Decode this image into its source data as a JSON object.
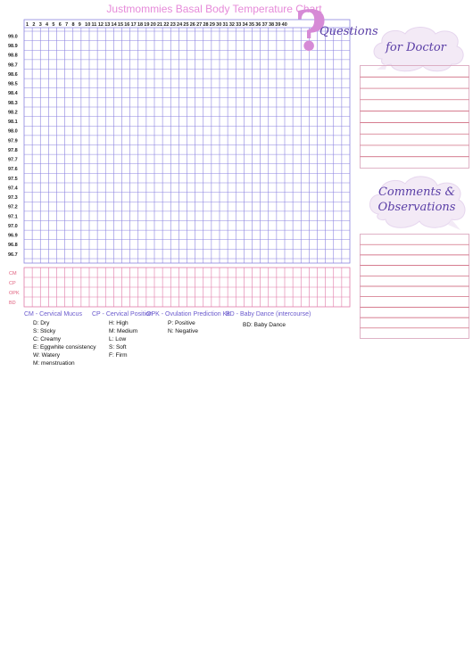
{
  "title": "Justmommies Basal Body Temperature Chart",
  "days": [
    "1",
    "2",
    "3",
    "4",
    "5",
    "6",
    "7",
    "8",
    "9",
    "10",
    "11",
    "12",
    "13",
    "14",
    "15",
    "16",
    "17",
    "18",
    "19",
    "20",
    "21",
    "22",
    "23",
    "24",
    "25",
    "26",
    "27",
    "28",
    "29",
    "30",
    "31",
    "32",
    "33",
    "34",
    "35",
    "36",
    "37",
    "38",
    "39",
    "40"
  ],
  "temperatures": [
    "99.0",
    "98.9",
    "98.8",
    "98.7",
    "98.6",
    "98.5",
    "98.4",
    "98.3",
    "98.2",
    "98.1",
    "98.0",
    "97.9",
    "97.8",
    "97.7",
    "97.6",
    "97.5",
    "97.4",
    "97.3",
    "97.2",
    "97.1",
    "97.0",
    "96.9",
    "96.8",
    "96.7"
  ],
  "tracking_rows": [
    "CM",
    "CP",
    "OPK",
    "BD"
  ],
  "questions_label": "Questions",
  "doctor_label": "for Doctor",
  "comments_label_1": "Comments &",
  "comments_label_2": "Observations",
  "legend": {
    "cm_header": "CM - Cervical Mucus",
    "cp_header": "CP - Cervical Position",
    "opk_header": "OPK - Ovulation Prediction Kit",
    "bd_header": "BD - Baby Dance (intercourse)",
    "cm_items": [
      "D: Dry",
      "S: Sticky",
      "C: Creamy",
      "E: Eggwhite consistency",
      "W: Watery",
      "M: menstruation"
    ],
    "cp_items": [
      "H: High",
      "M: Medium",
      "L: Low",
      "S: Soft",
      "F: Firm"
    ],
    "opk_items": [
      "P: Positive",
      "N: Negative"
    ],
    "bd_items": [
      "BD: Baby Dance"
    ]
  },
  "colors": {
    "grid_blue": "#8c84e0",
    "grid_pink": "#e07aa8",
    "title_pink": "#e68ad9",
    "label_purple": "#5a3ea6",
    "row_label_pink": "#e0607e",
    "line_red": "#c8506a"
  }
}
